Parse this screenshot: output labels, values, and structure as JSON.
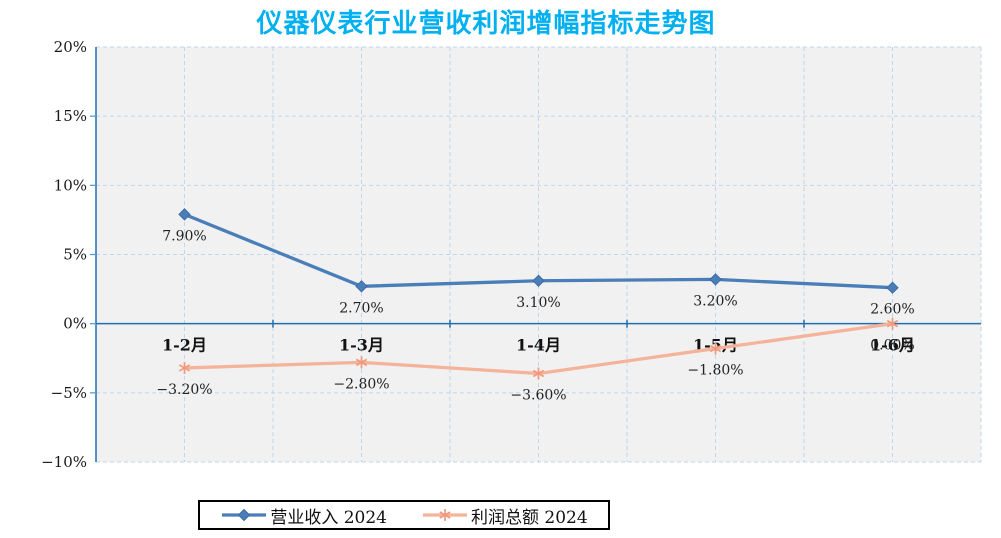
{
  "title": "仪器仪表行业营收利润增幅指标走势图",
  "colors": {
    "title": "#00B0F0",
    "axis": "#1F6FB5",
    "gridline": "#BDD7EE",
    "tick": "#5B9BD5",
    "plot_bg": "#F1F1F1",
    "legend_border": "#000000"
  },
  "chart_data": {
    "type": "line",
    "title": "仪器仪表行业营收利润增幅指标走势图",
    "categories": [
      "1-2月",
      "1-3月",
      "1-4月",
      "1-5月",
      "1-6月"
    ],
    "series": [
      {
        "id": "revenue",
        "name": "营业收入 2024",
        "marker": "diamond",
        "color": "#4A7EB8",
        "marker_color": "#3D6CA3",
        "values": [
          7.9,
          2.7,
          3.1,
          3.2,
          2.6
        ],
        "labels": [
          "7.90%",
          "2.70%",
          "3.10%",
          "3.20%",
          "2.60%"
        ]
      },
      {
        "id": "profit",
        "name": "利润总额 2024",
        "marker": "asterisk",
        "color": "#F5B39A",
        "marker_color": "#F0997D",
        "values": [
          -3.2,
          -2.8,
          -3.6,
          -1.8,
          0.0
        ],
        "labels": [
          "−3.20%",
          "−2.80%",
          "−3.60%",
          "−1.80%",
          "0.00%"
        ]
      }
    ],
    "ylim": [
      -10,
      20
    ],
    "ytick_step": 5,
    "ytick_labels": [
      "20%",
      "15%",
      "10%",
      "5%",
      "0%",
      "−5%",
      "−10%"
    ],
    "grid": true,
    "legend_position": "bottom"
  }
}
